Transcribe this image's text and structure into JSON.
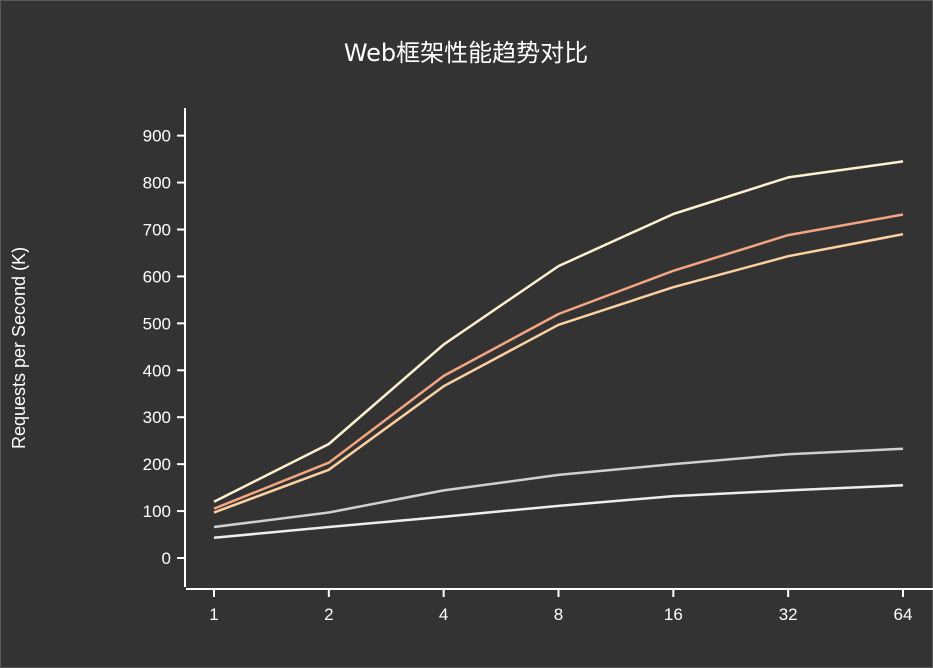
{
  "chart_data": {
    "type": "line",
    "title": "Web框架性能趋势对比",
    "xlabel": "",
    "ylabel": "Requests per Second (K)",
    "x": [
      "1",
      "2",
      "4",
      "8",
      "16",
      "32",
      "64"
    ],
    "x_scale": "log2",
    "ylim": [
      -60,
      960
    ],
    "yticks": [
      0,
      100,
      200,
      300,
      400,
      500,
      600,
      700,
      800,
      900
    ],
    "grid": false,
    "legend": "none",
    "series": [
      {
        "color": "#fdf2d0",
        "values": [
          120,
          243,
          455,
          622,
          733,
          811,
          845
        ]
      },
      {
        "color": "#f4a582",
        "values": [
          105,
          203,
          388,
          520,
          612,
          688,
          732
        ]
      },
      {
        "color": "#fdd0a2",
        "values": [
          97,
          188,
          366,
          497,
          577,
          643,
          690
        ]
      },
      {
        "color": "#d0d0d0",
        "values": [
          66,
          97,
          144,
          177,
          200,
          221,
          233
        ]
      },
      {
        "color": "#eeeeee",
        "values": [
          43,
          66,
          88,
          111,
          132,
          144,
          155
        ]
      }
    ]
  }
}
